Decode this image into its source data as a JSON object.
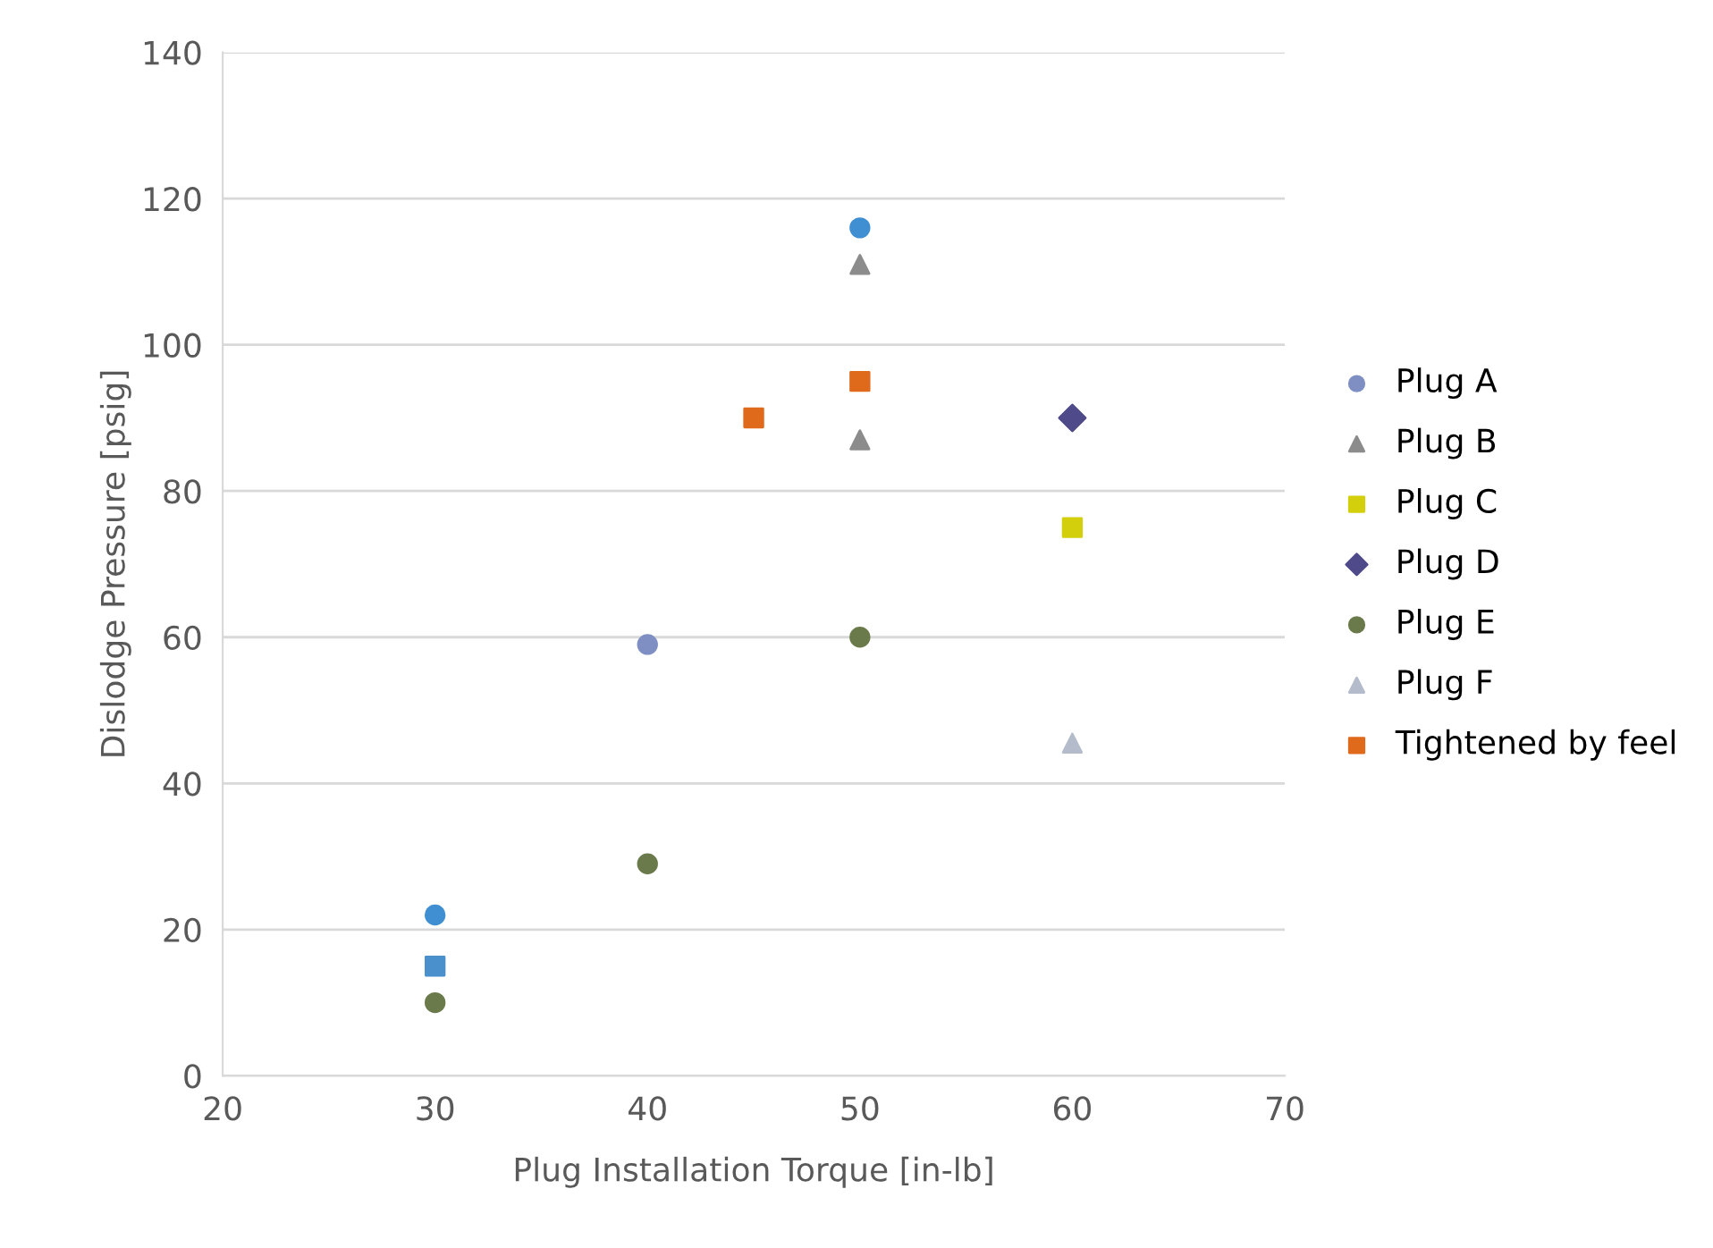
{
  "chart_data": {
    "type": "scatter",
    "xlabel": "Plug Installation Torque [in-lb]",
    "ylabel": "Dislodge Pressure [psig]",
    "xlim": [
      20,
      70
    ],
    "xticks": [
      20,
      30,
      40,
      50,
      60,
      70
    ],
    "ylim": [
      0,
      140
    ],
    "yticks": [
      0,
      20,
      40,
      60,
      80,
      100,
      120,
      140
    ],
    "grid": "y",
    "legend": "right",
    "series": [
      {
        "name": "Plug A",
        "color": "#7f8fc4",
        "marker": "circle",
        "x": [
          40
        ],
        "values": [
          59
        ]
      },
      {
        "name": "Plug B",
        "color": "#8c8c8c",
        "marker": "triangle",
        "x": [
          50,
          50
        ],
        "values": [
          111,
          87
        ]
      },
      {
        "name": "Plug C",
        "color": "#d4cf0c",
        "marker": "square",
        "x": [
          60
        ],
        "values": [
          75
        ]
      },
      {
        "name": "Plug D",
        "color": "#4f4a8a",
        "marker": "diamond",
        "x": [
          60
        ],
        "values": [
          90
        ]
      },
      {
        "name": "Plug E",
        "color": "#6b7a4a",
        "marker": "circle",
        "x": [
          50,
          40,
          30
        ],
        "values": [
          60,
          29,
          10
        ]
      },
      {
        "name": "Plug F",
        "color": "#b4bccc",
        "marker": "triangle",
        "x": [
          60
        ],
        "values": [
          45.5
        ]
      },
      {
        "name": "Tightened by feel",
        "color": "#e06a1c",
        "marker": "square",
        "x": [
          45,
          50
        ],
        "values": [
          90,
          95
        ]
      },
      {
        "color": "#3f8fd2",
        "marker": "circle",
        "x": [
          50,
          30
        ],
        "values": [
          116,
          22
        ]
      },
      {
        "color": "#4a90cc",
        "marker": "square",
        "x": [
          30
        ],
        "values": [
          15
        ]
      }
    ]
  }
}
